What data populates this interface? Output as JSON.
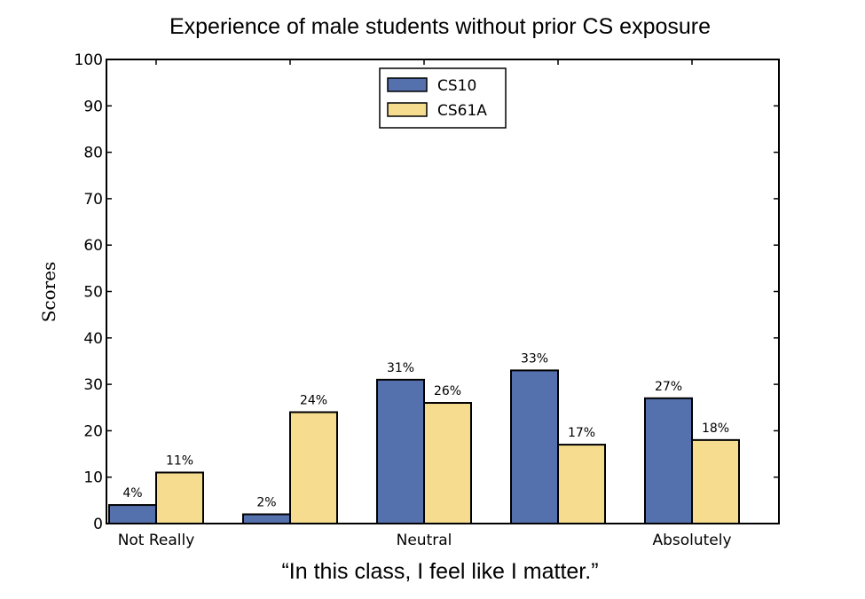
{
  "chart_data": {
    "type": "bar",
    "title": "Experience of male students without prior CS exposure",
    "xlabel": "“In this class, I feel like I matter.”",
    "ylabel": "Scores",
    "ylim": [
      0,
      100
    ],
    "yticks": [
      0,
      10,
      20,
      30,
      40,
      50,
      60,
      70,
      80,
      90,
      100
    ],
    "categories": [
      "Not Really",
      "",
      "Neutral",
      "",
      "Absolutely"
    ],
    "series": [
      {
        "name": "CS10",
        "color": "#5471ad",
        "values": [
          4,
          2,
          31,
          33,
          27
        ],
        "labels": [
          "4%",
          "2%",
          "31%",
          "33%",
          "27%"
        ]
      },
      {
        "name": "CS61A",
        "color": "#f5dc8f",
        "values": [
          11,
          24,
          26,
          17,
          18
        ],
        "labels": [
          "11%",
          "24%",
          "26%",
          "17%",
          "18%"
        ]
      }
    ],
    "legend_position": "top-center",
    "grid": false
  }
}
